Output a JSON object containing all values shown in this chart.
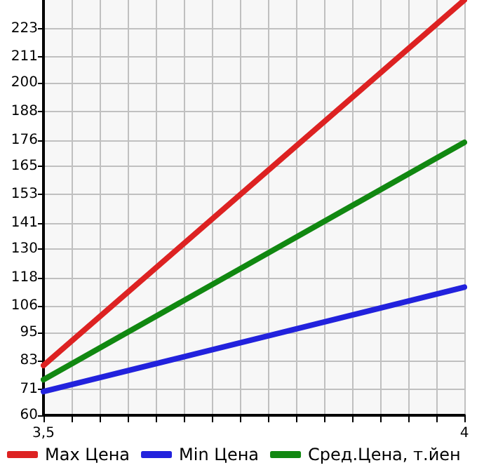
{
  "chart_data": {
    "type": "line",
    "x": [
      3.5,
      4
    ],
    "series": [
      {
        "name": "Max Цена",
        "color": "#dd2222",
        "values": [
          81,
          235
        ]
      },
      {
        "name": "Min Цена",
        "color": "#2222dd",
        "values": [
          70,
          114
        ]
      },
      {
        "name": "Сред.Цена, т.йен",
        "color": "#118811",
        "values": [
          75,
          175
        ]
      }
    ],
    "xlim": [
      3.5,
      4
    ],
    "xticks": [
      {
        "value": 3.5,
        "label": "3,5"
      },
      {
        "value": 3.5333,
        "label": null
      },
      {
        "value": 3.5667,
        "label": null
      },
      {
        "value": 3.6,
        "label": null
      },
      {
        "value": 3.6333,
        "label": null
      },
      {
        "value": 3.6667,
        "label": null
      },
      {
        "value": 3.7,
        "label": null
      },
      {
        "value": 3.7333,
        "label": null
      },
      {
        "value": 3.7667,
        "label": null
      },
      {
        "value": 3.8,
        "label": null
      },
      {
        "value": 3.8333,
        "label": null
      },
      {
        "value": 3.8667,
        "label": null
      },
      {
        "value": 3.9,
        "label": null
      },
      {
        "value": 3.9333,
        "label": null
      },
      {
        "value": 3.9667,
        "label": null
      },
      {
        "value": 4,
        "label": "4"
      }
    ],
    "ylim": [
      60,
      235
    ],
    "yticks": [
      60,
      71,
      83,
      95,
      106,
      118,
      130,
      141,
      153,
      165,
      176,
      188,
      200,
      211,
      223
    ],
    "grid": true,
    "legend": "bottom",
    "marker": "none",
    "line_style": "solid"
  }
}
